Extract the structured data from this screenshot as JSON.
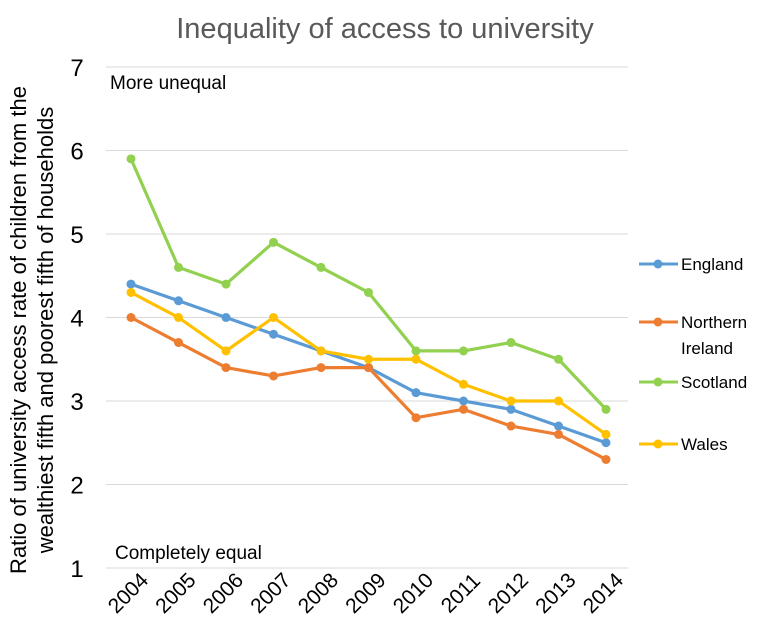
{
  "chart_data": {
    "type": "line",
    "title": "Inequality of access to university",
    "ylabel": "Ratio of university access rate of children from the wealthiest fifth and poorest fifth of households",
    "ylabel_lines": [
      "Ratio of university access rate of children from the",
      "wealthiest fifth and poorest fifth of households"
    ],
    "xlabel": "",
    "x": [
      "2004",
      "2005",
      "2006",
      "2007",
      "2008",
      "2009",
      "2010",
      "2011",
      "2012",
      "2013",
      "2014"
    ],
    "ylim": [
      1,
      7
    ],
    "yticks": [
      1,
      2,
      3,
      4,
      5,
      6,
      7
    ],
    "grid": true,
    "legend_position": "right",
    "annotations": {
      "top": "More unequal",
      "bottom": "Completely equal"
    },
    "series": [
      {
        "name": "England",
        "color": "#5b9bd5",
        "values": [
          4.4,
          4.2,
          4.0,
          3.8,
          3.6,
          3.4,
          3.1,
          3.0,
          2.9,
          2.7,
          2.5
        ]
      },
      {
        "name": "Northern Ireland",
        "legend_lines": [
          "Northern",
          "Ireland"
        ],
        "color": "#ed7d31",
        "values": [
          4.0,
          3.7,
          3.4,
          3.3,
          3.4,
          3.4,
          2.8,
          2.9,
          2.7,
          2.6,
          2.3
        ]
      },
      {
        "name": "Scotland",
        "color": "#92d050",
        "values": [
          5.9,
          4.6,
          4.4,
          4.9,
          4.6,
          4.3,
          3.6,
          3.6,
          3.7,
          3.5,
          2.9
        ]
      },
      {
        "name": "Wales",
        "color": "#ffc000",
        "values": [
          4.3,
          4.0,
          3.6,
          4.0,
          3.6,
          3.5,
          3.5,
          3.2,
          3.0,
          3.0,
          2.6
        ]
      }
    ]
  }
}
